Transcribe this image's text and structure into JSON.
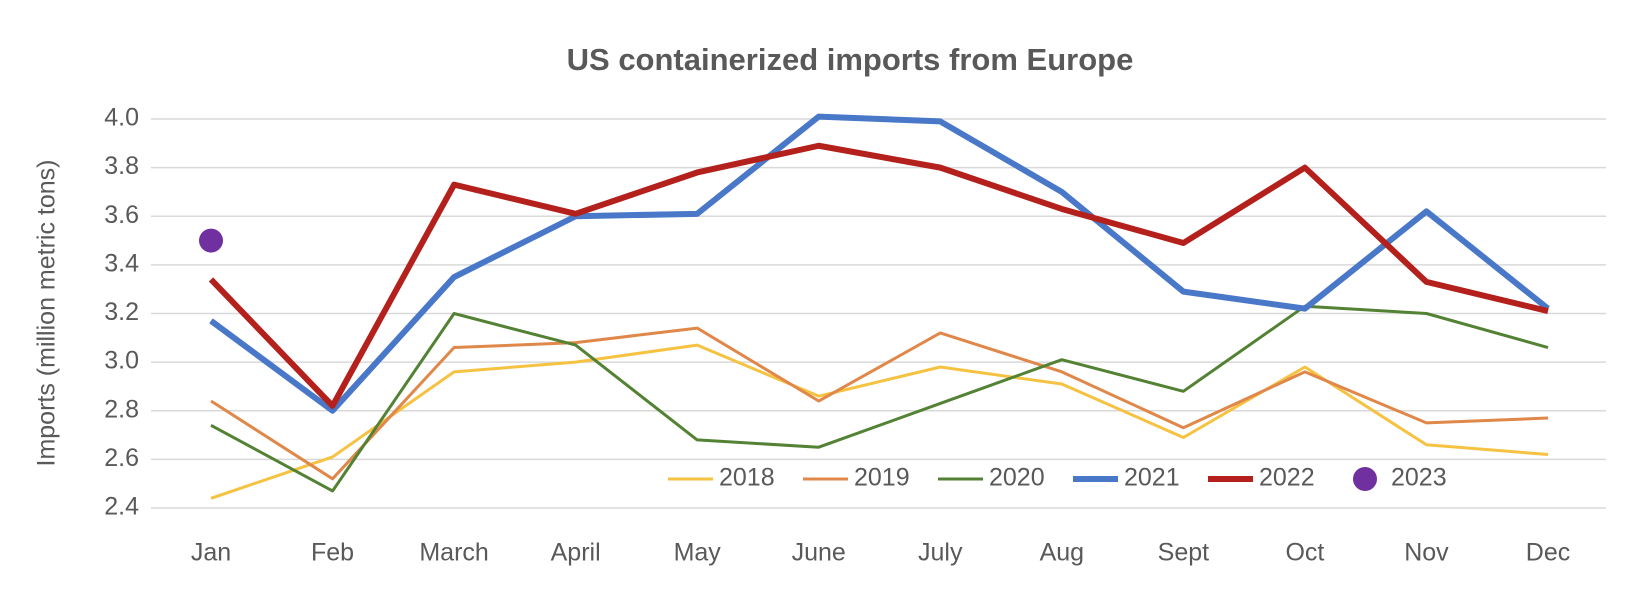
{
  "chart_data": {
    "type": "line",
    "title": "US containerized imports from Europe",
    "y_label": "Imports (million metric tons)",
    "categories": [
      "Jan",
      "Feb",
      "March",
      "April",
      "May",
      "June",
      "July",
      "Aug",
      "Sept",
      "Oct",
      "Nov",
      "Dec"
    ],
    "series": [
      {
        "name": "2018",
        "color": "#f5c242",
        "width": 3,
        "values": [
          2.44,
          2.61,
          2.96,
          3.0,
          3.07,
          2.86,
          2.98,
          2.91,
          2.69,
          2.98,
          2.66,
          2.62
        ]
      },
      {
        "name": "2019",
        "color": "#e0884a",
        "width": 3,
        "values": [
          2.84,
          2.52,
          3.06,
          3.08,
          3.14,
          2.84,
          3.12,
          2.96,
          2.73,
          2.96,
          2.75,
          2.77
        ]
      },
      {
        "name": "2020",
        "color": "#548235",
        "width": 3,
        "values": [
          2.74,
          2.47,
          3.2,
          3.07,
          2.68,
          2.65,
          2.83,
          3.01,
          2.88,
          3.23,
          3.2,
          3.06
        ]
      },
      {
        "name": "2021",
        "color": "#4a78c9",
        "width": 6,
        "values": [
          3.17,
          2.8,
          3.35,
          3.6,
          3.61,
          4.01,
          3.99,
          3.7,
          3.29,
          3.22,
          3.62,
          3.22
        ]
      },
      {
        "name": "2022",
        "color": "#b4201c",
        "width": 6,
        "values": [
          3.34,
          2.82,
          3.73,
          3.61,
          3.78,
          3.89,
          3.8,
          3.63,
          3.49,
          3.8,
          3.33,
          3.21
        ]
      },
      {
        "name": "2023",
        "color": "#7030a0",
        "style": "marker",
        "values": [
          3.5,
          null,
          null,
          null,
          null,
          null,
          null,
          null,
          null,
          null,
          null,
          null
        ]
      }
    ],
    "ylim": [
      2.4,
      4.0
    ],
    "yticks": [
      2.4,
      2.6,
      2.8,
      {
        "value": 3,
        "label": "3.0"
      },
      3.2,
      3.4,
      3.6,
      3.8,
      {
        "value": 4,
        "label": "4.0"
      }
    ],
    "grid": true,
    "legend": "bottom"
  }
}
